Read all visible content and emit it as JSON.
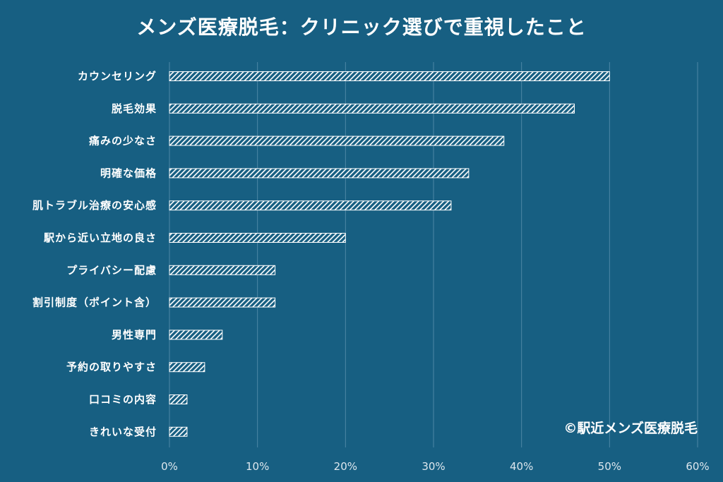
{
  "chart_data": {
    "type": "bar",
    "orientation": "horizontal",
    "title": "メンズ医療脱毛：クリニック選びで重視したこと",
    "categories": [
      "カウンセリング",
      "脱毛効果",
      "痛みの少なさ",
      "明確な価格",
      "肌トラブル治療の安心感",
      "駅から近い立地の良さ",
      "プライバシー配慮",
      "割引制度（ポイント含）",
      "男性専門",
      "予約の取りやすさ",
      "口コミの内容",
      "きれいな受付"
    ],
    "values": [
      50,
      46,
      38,
      34,
      32,
      20,
      12,
      12,
      6,
      4,
      2,
      2
    ],
    "unit": "%",
    "xlim": [
      0,
      60
    ],
    "xticks": [
      "0%",
      "10%",
      "20%",
      "30%",
      "40%",
      "50%",
      "60%"
    ],
    "xtick_values": [
      0,
      10,
      20,
      30,
      40,
      50,
      60
    ],
    "grid": "vertical",
    "bar_fill": "white diagonal hatch",
    "credit": "©駅近メンズ医療脱毛"
  },
  "colors": {
    "background": "#175f82",
    "bar": "#ffffff",
    "grid": "#4e87a6",
    "text": "#ffffff"
  }
}
